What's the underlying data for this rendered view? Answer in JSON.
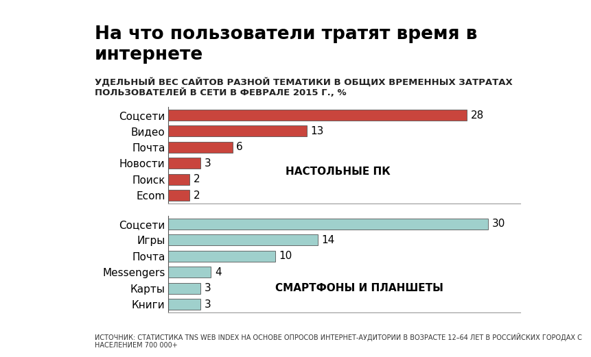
{
  "title": "На что пользователи тратят время в интернете",
  "subtitle": "УДЕЛЬНЫЙ ВЕС САЙТОВ РАЗНОЙ ТЕМАТИКИ В ОБЩИХ ВРЕМЕННЫХ ЗАТРАТАХ ПОЛЬЗОВАТЕЛЕЙ В СЕТИ В ФЕВРАЛЕ 2015 Г., %",
  "source": "ИСТОЧНИК: СТАТИСТИКА TNS WEB INDEX НА ОСНОВЕ ОПРОСОВ ИНТЕРНЕТ-АУДИТОРИИ В ВОЗРАСТЕ 12–64 ЛЕТ В РОССИЙСКИХ ГОРОДАХ С НАСЕЛЕНИЕМ 700 000+",
  "chart_data": [
    {
      "type": "bar",
      "orientation": "horizontal",
      "title": "НАСТОЛЬНЫЕ ПК",
      "categories": [
        "Соцсети",
        "Видео",
        "Почта",
        "Новости",
        "Поиск",
        "Ecom"
      ],
      "values": [
        28,
        13,
        6,
        3,
        2,
        2
      ],
      "color": "#c9453d",
      "xlim": [
        0,
        33
      ],
      "xticks": [],
      "data_labels": true,
      "tick_labels": "y"
    },
    {
      "type": "bar",
      "orientation": "horizontal",
      "title": "СМАРТФОНЫ И ПЛАНШЕТЫ",
      "categories": [
        "Соцсети",
        "Игры",
        "Почта",
        "Messengers",
        "Карты",
        "Книги"
      ],
      "values": [
        30,
        14,
        10,
        4,
        3,
        3
      ],
      "color": "#9fd0cc",
      "xlim": [
        0,
        33
      ],
      "xticks": [],
      "data_labels": true,
      "tick_labels": "y"
    }
  ]
}
